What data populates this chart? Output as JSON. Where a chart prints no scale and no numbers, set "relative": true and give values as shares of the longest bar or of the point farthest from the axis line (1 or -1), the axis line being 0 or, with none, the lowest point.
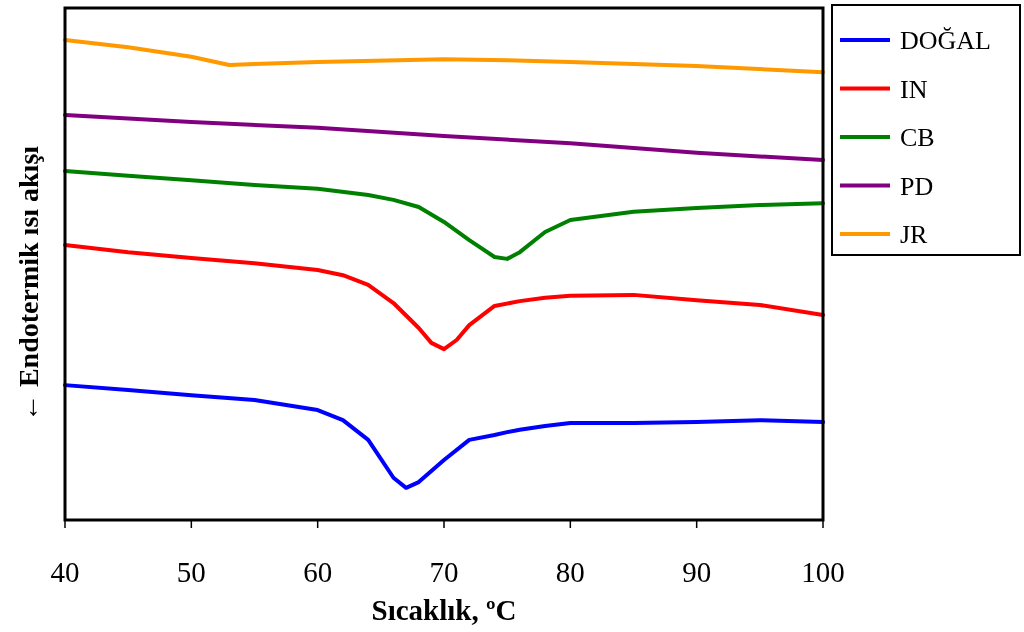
{
  "chart_data": {
    "type": "line",
    "relative": true,
    "xlabel": "Sıcaklık, ºC",
    "ylabel": "← Endotermik ısı akışı",
    "xlim": [
      40,
      100
    ],
    "xticks": [
      40,
      50,
      60,
      70,
      80,
      90,
      100
    ],
    "legend": "right",
    "grid": false,
    "marker": "none",
    "line_style": "solid",
    "tick_labels": "x",
    "series": [
      {
        "name": "DOĞAL",
        "color": "#0000ff",
        "x": [
          40,
          45,
          50,
          55,
          60,
          62,
          64,
          66,
          67,
          68,
          70,
          72,
          74,
          75,
          76,
          78,
          80,
          85,
          90,
          95,
          100
        ],
        "values": [
          0.281,
          0.271,
          0.26,
          0.25,
          0.229,
          0.208,
          0.167,
          0.088,
          0.067,
          0.079,
          0.125,
          0.167,
          0.177,
          0.183,
          0.188,
          0.196,
          0.202,
          0.202,
          0.204,
          0.208,
          0.204
        ]
      },
      {
        "name": "IN",
        "color": "#ff0000",
        "x": [
          40,
          45,
          50,
          55,
          60,
          62,
          64,
          66,
          68,
          69,
          70,
          71,
          72,
          74,
          76,
          78,
          80,
          85,
          90,
          95,
          100
        ],
        "values": [
          0.573,
          0.558,
          0.546,
          0.535,
          0.521,
          0.51,
          0.49,
          0.452,
          0.4,
          0.369,
          0.356,
          0.375,
          0.406,
          0.446,
          0.456,
          0.463,
          0.467,
          0.469,
          0.458,
          0.448,
          0.427
        ]
      },
      {
        "name": "CB",
        "color": "#008000",
        "x": [
          40,
          45,
          50,
          55,
          60,
          64,
          66,
          68,
          70,
          72,
          74,
          75,
          76,
          78,
          80,
          85,
          90,
          95,
          100
        ],
        "values": [
          0.727,
          0.717,
          0.708,
          0.698,
          0.69,
          0.677,
          0.667,
          0.652,
          0.621,
          0.583,
          0.548,
          0.544,
          0.558,
          0.6,
          0.625,
          0.642,
          0.65,
          0.656,
          0.66
        ]
      },
      {
        "name": "PD",
        "color": "#800080",
        "x": [
          40,
          50,
          60,
          70,
          80,
          90,
          100
        ],
        "values": [
          0.844,
          0.829,
          0.817,
          0.8,
          0.785,
          0.765,
          0.75
        ]
      },
      {
        "name": "JR",
        "color": "#ff9900",
        "x": [
          40,
          45,
          50,
          53,
          55,
          60,
          70,
          75,
          80,
          90,
          100
        ],
        "values": [
          1,
          0.985,
          0.965,
          0.948,
          0.95,
          0.954,
          0.96,
          0.958,
          0.954,
          0.946,
          0.933
        ]
      }
    ]
  }
}
